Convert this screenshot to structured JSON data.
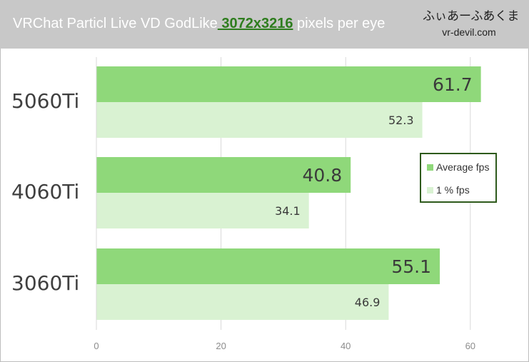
{
  "header": {
    "title_pre": "VRChat Particl Live  VD GodLike",
    "title_highlight": " 3072x3216",
    "title_post": " pixels per eye",
    "brand_logo": "ふぃあーふ́あくま",
    "brand_site": "vr-devil.com"
  },
  "colors": {
    "average": "#8fd87a",
    "low": "#d9f2d2",
    "grid": "#d9d9d9",
    "axis_text": "#8c8c8c",
    "legend_border": "#2e5a1c"
  },
  "chart_data": {
    "type": "bar",
    "orientation": "horizontal",
    "categories": [
      "5060Ti",
      "4060Ti",
      "3060Ti"
    ],
    "series": [
      {
        "name": "Average fps",
        "values": [
          61.7,
          40.8,
          55.1
        ]
      },
      {
        "name": "1 % fps",
        "values": [
          52.3,
          34.1,
          46.9
        ]
      }
    ],
    "xlim": [
      0,
      70
    ],
    "xticks": [
      0,
      20,
      40,
      60
    ],
    "grid": true,
    "legend_placement": "right"
  }
}
